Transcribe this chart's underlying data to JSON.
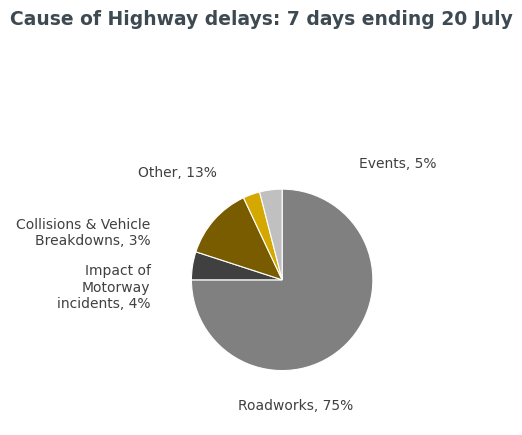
{
  "title": "Cause of Highway delays: 7 days ending 20 July",
  "slices": [
    {
      "label": "Roadworks, 75%",
      "value": 75,
      "color": "#808080"
    },
    {
      "label": "Events, 5%",
      "value": 5,
      "color": "#404040"
    },
    {
      "label": "Other, 13%",
      "value": 13,
      "color": "#7a5c00"
    },
    {
      "label": "Collisions & Vehicle\nBreakdowns, 3%",
      "value": 3,
      "color": "#d4a800"
    },
    {
      "label": "Impact of\nMotorway\nincidents, 4%",
      "value": 4,
      "color": "#c0c0c0"
    }
  ],
  "title_color": "#3d4a52",
  "label_color": "#404040",
  "title_fontsize": 13.5,
  "label_fontsize": 10,
  "background_color": "#ffffff",
  "startangle": 90,
  "label_positions": [
    [
      0.15,
      -1.38,
      "center"
    ],
    [
      0.85,
      1.28,
      "left"
    ],
    [
      -0.72,
      1.18,
      "right"
    ],
    [
      -1.45,
      0.52,
      "right"
    ],
    [
      -1.45,
      -0.08,
      "right"
    ]
  ]
}
